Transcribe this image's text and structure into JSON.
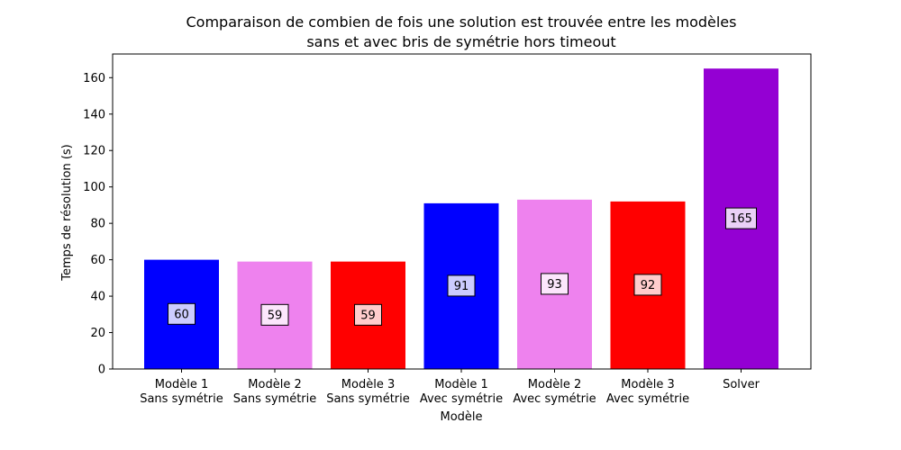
{
  "chart_data": {
    "type": "bar",
    "title": "Comparaison de combien de fois une solution est trouvée entre les modèles",
    "subtitle": "sans et avec bris de symétrie hors timeout",
    "xlabel": "Modèle",
    "ylabel": "Temps de résolution (s)",
    "ylim": [
      0,
      173
    ],
    "yticks": [
      0,
      20,
      40,
      60,
      80,
      100,
      120,
      140,
      160
    ],
    "grid": false,
    "categories": [
      [
        "Modèle 1",
        "Sans symétrie"
      ],
      [
        "Modèle 2",
        "Sans symétrie"
      ],
      [
        "Modèle 3",
        "Sans symétrie"
      ],
      [
        "Modèle 1",
        "Avec symétrie"
      ],
      [
        "Modèle 2",
        "Avec symétrie"
      ],
      [
        "Modèle 3",
        "Avec symétrie"
      ],
      [
        "Solver"
      ]
    ],
    "values": [
      60,
      59,
      59,
      91,
      93,
      92,
      165
    ],
    "colors": [
      "#0000ff",
      "#ee82ee",
      "#ff0000",
      "#0000ff",
      "#ee82ee",
      "#ff0000",
      "#9400d3"
    ],
    "label_box_colors": [
      "#ccccff",
      "#fce6fc",
      "#ffcccc",
      "#ccccff",
      "#fce6fc",
      "#ffcccc",
      "#ead0f7"
    ]
  }
}
